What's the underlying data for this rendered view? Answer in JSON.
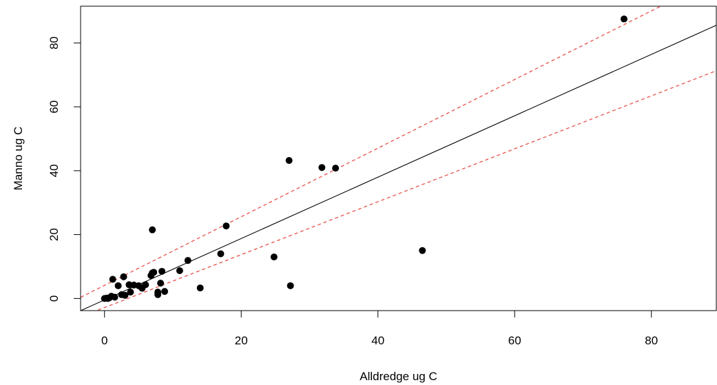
{
  "chart_data": {
    "type": "scatter",
    "title": "",
    "xlabel": "Alldredge ug C",
    "ylabel": "Manno ug C",
    "xlim": [
      -3.5,
      89.5
    ],
    "ylim": [
      -3.8,
      91.5
    ],
    "xticks": [
      0,
      20,
      40,
      60,
      80
    ],
    "yticks": [
      0,
      20,
      40,
      60,
      80
    ],
    "xtick_labels": [
      "0",
      "20",
      "40",
      "60",
      "80"
    ],
    "ytick_labels": [
      "0",
      "20",
      "40",
      "60",
      "80"
    ],
    "grid": false,
    "legend": null,
    "points": {
      "x": [
        0.0,
        0.3,
        0.5,
        0.7,
        1.0,
        1.2,
        1.5,
        2.0,
        2.5,
        2.8,
        3.0,
        3.6,
        3.8,
        4.3,
        5.0,
        5.5,
        6.0,
        6.8,
        7.0,
        7.0,
        7.2,
        7.8,
        7.8,
        8.2,
        8.4,
        8.8,
        11.0,
        12.2,
        14.0,
        17.0,
        17.8,
        24.8,
        27.0,
        27.2,
        31.8,
        33.8,
        46.5,
        76.0
      ],
      "y": [
        0.0,
        0.1,
        0.0,
        0.2,
        0.7,
        6.0,
        0.4,
        4.0,
        1.2,
        6.8,
        1.0,
        4.3,
        2.0,
        4.2,
        4.0,
        3.2,
        4.3,
        7.2,
        8.0,
        21.5,
        8.2,
        2.0,
        1.2,
        4.8,
        8.5,
        2.2,
        8.7,
        11.9,
        3.3,
        14.0,
        22.7,
        13.0,
        43.2,
        4.0,
        41.0,
        40.8,
        15.0,
        87.5
      ]
    },
    "lines": [
      {
        "style": "solid",
        "color": "#000000",
        "x": [
          -3.5,
          89.5
        ],
        "y": [
          -3.81,
          85.54
        ]
      },
      {
        "style": "dashed",
        "color": "#e8504a",
        "x": [
          -3.5,
          89.5
        ],
        "y": [
          0.35,
          100.23
        ]
      },
      {
        "style": "dashed",
        "color": "#e8504a",
        "x": [
          -3.5,
          89.5
        ],
        "y": [
          -5.74,
          71.29
        ]
      }
    ],
    "point_color": "#000000"
  }
}
